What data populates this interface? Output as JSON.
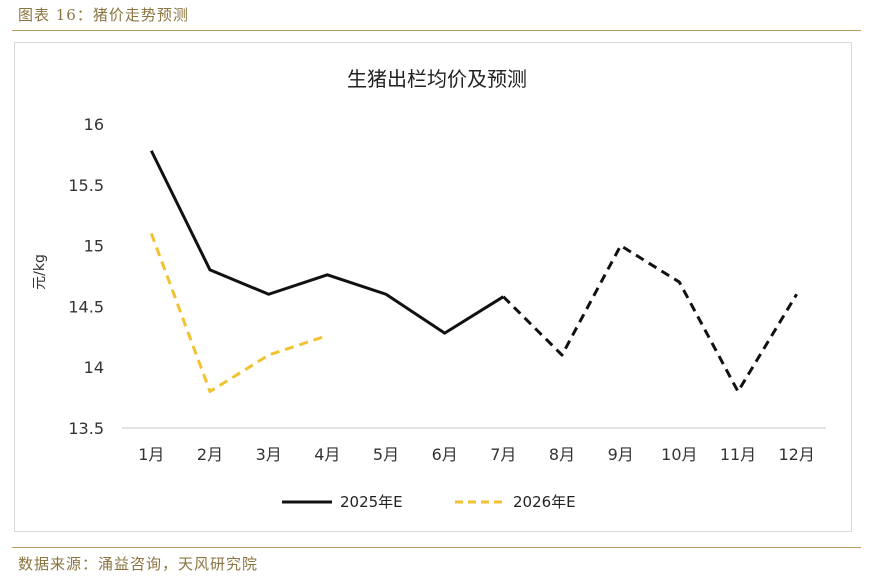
{
  "figure": {
    "caption": "图表 16：猪价走势预测",
    "source": "数据来源：涌益咨询，天风研究院"
  },
  "chart_data": {
    "type": "line",
    "title": "生猪出栏均价及预测",
    "ylabel": "元/kg",
    "xlabel": "",
    "categories": [
      "1月",
      "2月",
      "3月",
      "4月",
      "5月",
      "6月",
      "7月",
      "8月",
      "9月",
      "10月",
      "11月",
      "12月"
    ],
    "ylim": [
      13.5,
      16
    ],
    "yticks": [
      13.5,
      14,
      14.5,
      15,
      15.5,
      16
    ],
    "ytick_labels": [
      "13.5",
      "14",
      "14.5",
      "15",
      "15.5",
      "16"
    ],
    "grid": false,
    "legend_position": "bottom",
    "series": [
      {
        "name": "2025年E",
        "color": "#111111",
        "style": "solid until 7月, dashed afterwards",
        "values": [
          15.78,
          14.8,
          14.6,
          14.76,
          14.6,
          14.28,
          14.58,
          14.1,
          15.0,
          14.7,
          13.8,
          14.6
        ]
      },
      {
        "name": "2026年E",
        "color": "#f2c230",
        "style": "dashed",
        "values": [
          15.1,
          13.8,
          14.1,
          14.26,
          null,
          null,
          null,
          null,
          null,
          null,
          null,
          null
        ]
      }
    ]
  }
}
